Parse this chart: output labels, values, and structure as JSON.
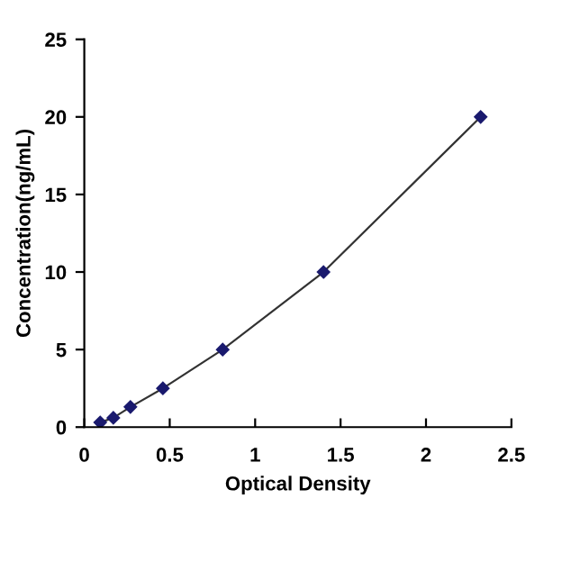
{
  "chart_data": {
    "type": "line",
    "xlabel": "Optical Density",
    "ylabel": "Concentration(ng/mL)",
    "x": [
      0.093,
      0.17,
      0.27,
      0.46,
      0.81,
      1.4,
      2.32
    ],
    "series": [
      {
        "color": "#1a1a6e",
        "values": [
          0.3,
          0.6,
          1.3,
          2.5,
          5,
          10,
          20
        ]
      }
    ],
    "xlim": [
      0,
      2.5
    ],
    "xticks": [
      0,
      0.5,
      1,
      1.5,
      2,
      2.5
    ],
    "ylim": [
      0,
      25
    ],
    "yticks": [
      0,
      5,
      10,
      15,
      20,
      25
    ],
    "marker": "diamond",
    "line_style": "solid",
    "grid": false,
    "legend": false
  }
}
